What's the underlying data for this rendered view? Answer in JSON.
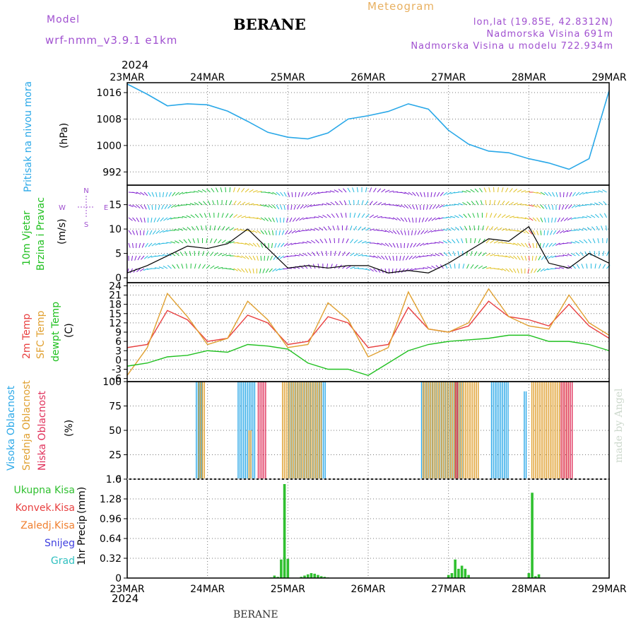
{
  "header": {
    "model_label": "Model",
    "model_name": "wrf-nmm_v3.9.1 e1km",
    "station": "BERANE",
    "meteogram_label": "Meteogram",
    "coords": "lon,lat (19.85E, 42.8312N)",
    "elevation": "Nadmorska Visina 691m",
    "elevation_model": "Nadmorska Visina u modelu 722.934m",
    "year_top": "2024",
    "year_bottom": "2024",
    "footer_station": "BERANE",
    "credit": "made by Angel"
  },
  "colors": {
    "pressure": "#2aa8e8",
    "temp2m": "#e84040",
    "sfc": "#e0a030",
    "dewpt": "#20c020",
    "cloud_high": "#2aa8e8",
    "cloud_mid": "#e0a030",
    "cloud_low": "#e0305a",
    "precip_total": "#30c030",
    "precip_conv": "#e84040",
    "precip_frozen": "#f08030",
    "snow": "#4040e0",
    "hail": "#30c0c0",
    "wind_speed": "#000000"
  },
  "chart_data": [
    {
      "type": "line",
      "panel": "pressure",
      "ylabel": [
        "Pritisak na nivou mora",
        "(hPa)"
      ],
      "x_labels": [
        "23MAR",
        "24MAR",
        "25MAR",
        "26MAR",
        "27MAR",
        "28MAR",
        "29MAR"
      ],
      "ylim": [
        988,
        1019
      ],
      "yticks": [
        992,
        1000,
        1008,
        1016
      ],
      "x_hours": [
        0,
        6,
        12,
        18,
        24,
        30,
        36,
        42,
        48,
        54,
        60,
        66,
        72,
        78,
        84,
        90,
        96,
        102,
        108,
        114,
        120,
        126,
        132,
        138,
        144
      ],
      "values": [
        1018.6,
        1015.5,
        1012,
        1012.6,
        1012.3,
        1010.4,
        1007.3,
        1004,
        1002.5,
        1002,
        1003.8,
        1008,
        1009,
        1010.3,
        1012.6,
        1011,
        1004.6,
        1000.4,
        998.3,
        997.8,
        996,
        994.7,
        992.8,
        996,
        1016.6
      ]
    },
    {
      "type": "line",
      "panel": "wind",
      "ylabel": [
        "10m Vjetar",
        "Brzina i Pravac",
        "(m/s)"
      ],
      "compass": [
        "N",
        "E",
        "S",
        "W"
      ],
      "ylim": [
        -1,
        19
      ],
      "yticks": [
        0,
        5,
        10,
        15
      ],
      "x_hours": [
        0,
        6,
        12,
        18,
        24,
        30,
        36,
        42,
        48,
        54,
        60,
        66,
        72,
        78,
        84,
        90,
        96,
        102,
        108,
        114,
        120,
        126,
        132,
        138,
        144
      ],
      "values": [
        1,
        2.5,
        4.5,
        6.5,
        6,
        7,
        10,
        6,
        2,
        2.5,
        2,
        2.5,
        2.5,
        1,
        1.5,
        1,
        3,
        5.5,
        8,
        7.5,
        10.5,
        3,
        2,
        5,
        3
      ]
    },
    {
      "type": "line",
      "panel": "temperature",
      "ylabel": [
        "2m Temp",
        "SFC Temp",
        "dewpt Temp",
        "(C)"
      ],
      "ylim": [
        -7,
        25
      ],
      "yticks": [
        -6,
        -3,
        0,
        3,
        6,
        9,
        12,
        15,
        18,
        21,
        24
      ],
      "x_hours": [
        0,
        6,
        12,
        18,
        24,
        30,
        36,
        42,
        48,
        54,
        60,
        66,
        72,
        78,
        84,
        90,
        96,
        102,
        108,
        114,
        120,
        126,
        132,
        138,
        144
      ],
      "series": [
        {
          "name": "2m Temp",
          "values": [
            4,
            5,
            16,
            13,
            6,
            7,
            14.5,
            12,
            5,
            6,
            14,
            12,
            4,
            5,
            17,
            10,
            9,
            11,
            19,
            14,
            13,
            11,
            18,
            11,
            7
          ]
        },
        {
          "name": "SFC Temp",
          "values": [
            -5,
            4,
            21.5,
            14,
            5,
            7,
            19,
            13,
            4,
            5,
            18.5,
            13,
            1,
            4,
            22,
            10,
            9,
            12,
            23,
            14,
            11,
            10,
            21,
            12,
            8
          ]
        },
        {
          "name": "dewpt Temp",
          "values": [
            -2,
            -1,
            1,
            1.5,
            3,
            2.5,
            5,
            4.5,
            3.5,
            -1,
            -3,
            -3,
            -5,
            -1,
            3,
            5,
            6,
            6.5,
            7,
            8,
            8,
            6,
            6,
            5,
            3
          ]
        }
      ]
    },
    {
      "type": "bar",
      "panel": "clouds",
      "ylabel": [
        "Visoka Oblacnost",
        "Srednja Oblacnost",
        "Niska Oblacnost",
        "(%)"
      ],
      "ylim": [
        0,
        100
      ],
      "yticks": [
        0,
        25,
        50,
        75,
        100
      ],
      "series": [
        {
          "name": "Visoka Oblacnost",
          "blocks": [
            [
              20.5,
              22.5,
              100
            ],
            [
              33,
              38,
              100
            ],
            [
              48,
              59,
              100
            ],
            [
              87.8,
              100,
              100
            ],
            [
              108.7,
              114,
              100
            ],
            [
              118.5,
              119.3,
              90
            ]
          ]
        },
        {
          "name": "Srednja Oblacnost",
          "blocks": [
            [
              21,
              23,
              100
            ],
            [
              36,
              37,
              50
            ],
            [
              46,
              58,
              100
            ],
            [
              88,
              105,
              100
            ],
            [
              120.5,
              132,
              100
            ]
          ]
        },
        {
          "name": "Niska Oblacnost",
          "blocks": [
            [
              38.5,
              41,
              100
            ],
            [
              97.5,
              98.2,
              100
            ],
            [
              129,
              132.5,
              100
            ]
          ]
        }
      ]
    },
    {
      "type": "bar",
      "panel": "precipitation",
      "ylabel": [
        "1hr Precip",
        "(mm)"
      ],
      "legend": [
        "Ukupna Kisa",
        "Konvek.Kisa",
        "Zaledj.Kisa",
        "Snijeg",
        "Grad"
      ],
      "ylim": [
        0,
        1.6
      ],
      "yticks": [
        0,
        0.32,
        0.64,
        0.96,
        1.28,
        1.6
      ],
      "x_hours": [
        43,
        44,
        45,
        46,
        47,
        48,
        52,
        53,
        54,
        55,
        56,
        57,
        58,
        59,
        60,
        96,
        97,
        98,
        99,
        100,
        101,
        102,
        120,
        121,
        122,
        123
      ],
      "values": [
        0.01,
        0.04,
        0.02,
        0.3,
        1.52,
        0.31,
        0.02,
        0.04,
        0.06,
        0.08,
        0.07,
        0.05,
        0.03,
        0.02,
        0.01,
        0.05,
        0.08,
        0.3,
        0.15,
        0.2,
        0.15,
        0.05,
        0.08,
        1.38,
        0.03,
        0.06
      ]
    }
  ]
}
